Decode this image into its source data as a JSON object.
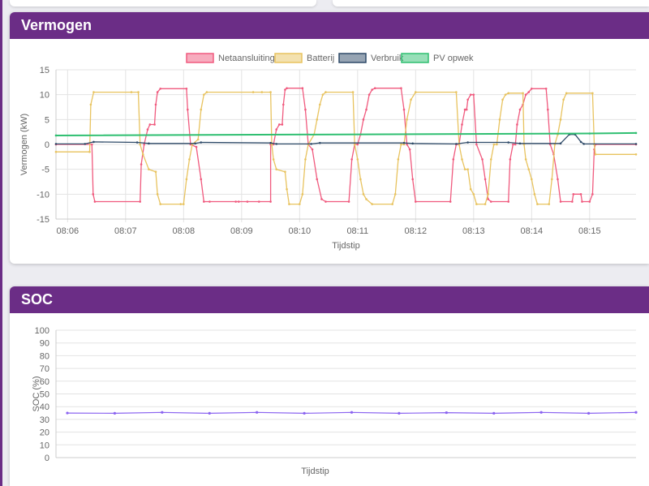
{
  "colors": {
    "accent": "#6b2d86",
    "netaansluiting": "#f05a7e",
    "batterij": "#e8c35f",
    "verbruik": "#2e4a68",
    "pv": "#2fbf71",
    "soc": "#8a63f0"
  },
  "cards": {
    "vermogen_title": "Vermogen",
    "soc_title": "SOC"
  },
  "chart_data": [
    {
      "type": "line",
      "title": "Vermogen",
      "xlabel": "Tijdstip",
      "ylabel": "Vermogen (kW)",
      "ylim": [
        -15,
        15
      ],
      "yticks": [
        15,
        10,
        5,
        0,
        -5,
        -10,
        -15
      ],
      "xticks": [
        "08:06",
        "08:07",
        "08:08",
        "08:09",
        "08:10",
        "08:11",
        "08:12",
        "08:13",
        "08:14",
        "08:15"
      ],
      "x_unit": "minutes after 08:06",
      "legend_position": "top",
      "grid": true,
      "series": [
        {
          "name": "Netaansluiting",
          "color": "#f05a7e",
          "points": [
            [
              -0.2,
              0
            ],
            [
              0.42,
              0
            ],
            [
              0.44,
              -10
            ],
            [
              0.47,
              -11.5
            ],
            [
              1.25,
              -11.5
            ],
            [
              1.27,
              -4
            ],
            [
              1.32,
              0
            ],
            [
              1.38,
              3
            ],
            [
              1.42,
              4
            ],
            [
              1.5,
              4
            ],
            [
              1.52,
              8
            ],
            [
              1.55,
              10.5
            ],
            [
              1.6,
              11.2
            ],
            [
              2.05,
              11.2
            ],
            [
              2.07,
              7
            ],
            [
              2.12,
              0
            ],
            [
              2.22,
              -0.5
            ],
            [
              2.3,
              -7
            ],
            [
              2.35,
              -11.5
            ],
            [
              2.45,
              -11.5
            ],
            [
              2.9,
              -11.5
            ],
            [
              2.95,
              -11.5
            ],
            [
              3.1,
              -11.5
            ],
            [
              3.3,
              -11.5
            ],
            [
              3.5,
              -11.5
            ],
            [
              3.5,
              0
            ],
            [
              3.55,
              0
            ],
            [
              3.6,
              3
            ],
            [
              3.65,
              4
            ],
            [
              3.7,
              4
            ],
            [
              3.72,
              8
            ],
            [
              3.75,
              11
            ],
            [
              3.78,
              11.3
            ],
            [
              4.05,
              11.3
            ],
            [
              4.1,
              7
            ],
            [
              4.15,
              0
            ],
            [
              4.22,
              -1
            ],
            [
              4.3,
              -7
            ],
            [
              4.38,
              -11
            ],
            [
              4.45,
              -11.5
            ],
            [
              4.85,
              -11.5
            ],
            [
              4.9,
              -3
            ],
            [
              4.95,
              0
            ],
            [
              5.0,
              0
            ],
            [
              5.05,
              2
            ],
            [
              5.1,
              5
            ],
            [
              5.15,
              7
            ],
            [
              5.2,
              10
            ],
            [
              5.25,
              11
            ],
            [
              5.3,
              11.3
            ],
            [
              5.75,
              11.3
            ],
            [
              5.8,
              7
            ],
            [
              5.85,
              0
            ],
            [
              5.9,
              -1
            ],
            [
              5.95,
              -7
            ],
            [
              6.0,
              -11.5
            ],
            [
              6.6,
              -11.5
            ],
            [
              6.65,
              -3
            ],
            [
              6.7,
              0
            ],
            [
              6.75,
              0
            ],
            [
              6.8,
              4
            ],
            [
              6.85,
              7
            ],
            [
              6.88,
              7
            ],
            [
              6.9,
              9
            ],
            [
              6.95,
              10
            ],
            [
              7.0,
              10
            ],
            [
              7.05,
              0
            ],
            [
              7.15,
              -3
            ],
            [
              7.2,
              -7
            ],
            [
              7.25,
              -11
            ],
            [
              7.3,
              -11.5
            ],
            [
              7.6,
              -11.5
            ],
            [
              7.63,
              -3
            ],
            [
              7.68,
              0
            ],
            [
              7.72,
              0
            ],
            [
              7.75,
              4
            ],
            [
              7.8,
              7
            ],
            [
              7.85,
              8
            ],
            [
              7.9,
              10
            ],
            [
              7.95,
              10.5
            ],
            [
              8.0,
              11.2
            ],
            [
              8.25,
              11.2
            ],
            [
              8.28,
              7
            ],
            [
              8.32,
              0
            ],
            [
              8.38,
              -2
            ],
            [
              8.45,
              -7
            ],
            [
              8.5,
              -11.5
            ],
            [
              8.7,
              -11.5
            ],
            [
              8.72,
              -10
            ],
            [
              8.85,
              -10
            ],
            [
              8.87,
              -11.5
            ],
            [
              9.0,
              -11.5
            ],
            [
              9.05,
              -10
            ],
            [
              9.08,
              -1
            ],
            [
              9.1,
              0
            ],
            [
              9.8,
              0
            ]
          ]
        },
        {
          "name": "Batterij",
          "color": "#e8c35f",
          "points": [
            [
              -0.2,
              -1.5
            ],
            [
              0.38,
              -1.5
            ],
            [
              0.4,
              8
            ],
            [
              0.45,
              10.5
            ],
            [
              1.1,
              10.5
            ],
            [
              1.22,
              10.5
            ],
            [
              1.25,
              0
            ],
            [
              1.3,
              -2
            ],
            [
              1.4,
              -5
            ],
            [
              1.52,
              -5.5
            ],
            [
              1.55,
              -10
            ],
            [
              1.6,
              -12
            ],
            [
              1.95,
              -12
            ],
            [
              2.0,
              -12
            ],
            [
              2.05,
              -7
            ],
            [
              2.1,
              -3
            ],
            [
              2.15,
              0
            ],
            [
              2.25,
              1
            ],
            [
              2.3,
              7
            ],
            [
              2.35,
              10
            ],
            [
              2.4,
              10.5
            ],
            [
              3.2,
              10.5
            ],
            [
              3.35,
              10.5
            ],
            [
              3.5,
              10.5
            ],
            [
              3.52,
              0
            ],
            [
              3.55,
              -3
            ],
            [
              3.6,
              -5
            ],
            [
              3.75,
              -5.5
            ],
            [
              3.78,
              -9
            ],
            [
              3.82,
              -12
            ],
            [
              4.0,
              -12
            ],
            [
              4.05,
              -10
            ],
            [
              4.1,
              -3
            ],
            [
              4.15,
              0
            ],
            [
              4.25,
              2
            ],
            [
              4.3,
              5
            ],
            [
              4.35,
              8
            ],
            [
              4.4,
              10
            ],
            [
              4.45,
              10.5
            ],
            [
              4.92,
              10.5
            ],
            [
              4.95,
              0
            ],
            [
              5.0,
              -3
            ],
            [
              5.05,
              -7
            ],
            [
              5.1,
              -10
            ],
            [
              5.15,
              -11
            ],
            [
              5.25,
              -12
            ],
            [
              5.6,
              -12
            ],
            [
              5.65,
              -10
            ],
            [
              5.7,
              -3
            ],
            [
              5.75,
              0
            ],
            [
              5.8,
              0
            ],
            [
              5.85,
              5
            ],
            [
              5.92,
              9
            ],
            [
              6.0,
              10.5
            ],
            [
              6.7,
              10.5
            ],
            [
              6.75,
              0
            ],
            [
              6.8,
              -3
            ],
            [
              6.85,
              -5
            ],
            [
              6.9,
              -5
            ],
            [
              6.95,
              -9
            ],
            [
              7.0,
              -10
            ],
            [
              7.05,
              -12
            ],
            [
              7.2,
              -12
            ],
            [
              7.25,
              -10
            ],
            [
              7.3,
              -3
            ],
            [
              7.35,
              0
            ],
            [
              7.4,
              0
            ],
            [
              7.45,
              5
            ],
            [
              7.5,
              9
            ],
            [
              7.55,
              10
            ],
            [
              7.6,
              10.3
            ],
            [
              7.85,
              10.3
            ],
            [
              7.87,
              0
            ],
            [
              7.9,
              -3
            ],
            [
              7.95,
              -5
            ],
            [
              8.0,
              -7
            ],
            [
              8.05,
              -10
            ],
            [
              8.1,
              -12
            ],
            [
              8.3,
              -12
            ],
            [
              8.35,
              -7
            ],
            [
              8.4,
              0
            ],
            [
              8.45,
              2
            ],
            [
              8.5,
              5
            ],
            [
              8.55,
              9
            ],
            [
              8.6,
              10.3
            ],
            [
              9.05,
              10.3
            ],
            [
              9.08,
              0
            ],
            [
              9.1,
              -2
            ],
            [
              9.8,
              -2
            ]
          ]
        },
        {
          "name": "Verbruik",
          "color": "#2e4a68",
          "points": [
            [
              -0.2,
              0.1
            ],
            [
              0.3,
              0.1
            ],
            [
              0.45,
              0.5
            ],
            [
              1.2,
              0.4
            ],
            [
              1.4,
              0.2
            ],
            [
              2.2,
              0.2
            ],
            [
              2.3,
              0.4
            ],
            [
              3.5,
              0.3
            ],
            [
              3.6,
              0.1
            ],
            [
              4.2,
              0.1
            ],
            [
              4.35,
              0.3
            ],
            [
              5.8,
              0.3
            ],
            [
              5.95,
              0.2
            ],
            [
              6.7,
              0.1
            ],
            [
              6.9,
              0.4
            ],
            [
              7.6,
              0.4
            ],
            [
              7.8,
              0.2
            ],
            [
              8.5,
              0.2
            ],
            [
              8.65,
              2
            ],
            [
              8.75,
              2
            ],
            [
              8.85,
              0.5
            ],
            [
              8.9,
              0.1
            ],
            [
              9.8,
              0.1
            ]
          ]
        },
        {
          "name": "PV opwek",
          "color": "#2fbf71",
          "points": [
            [
              -0.2,
              1.8
            ],
            [
              9.0,
              2.2
            ],
            [
              9.8,
              2.3
            ]
          ]
        }
      ]
    },
    {
      "type": "line",
      "title": "SOC",
      "xlabel": "Tijdstip",
      "ylabel": "SOC (%)",
      "ylim": [
        0,
        100
      ],
      "yticks": [
        100,
        90,
        80,
        70,
        60,
        50,
        40,
        30,
        20,
        10,
        0
      ],
      "grid": true,
      "series": [
        {
          "color": "#8a63f0",
          "values": [
            35,
            34.8,
            35.5,
            34.8,
            35.5,
            34.8,
            35.5,
            34.8,
            35.3,
            34.8,
            35.5,
            34.8,
            35.5
          ]
        }
      ]
    }
  ]
}
